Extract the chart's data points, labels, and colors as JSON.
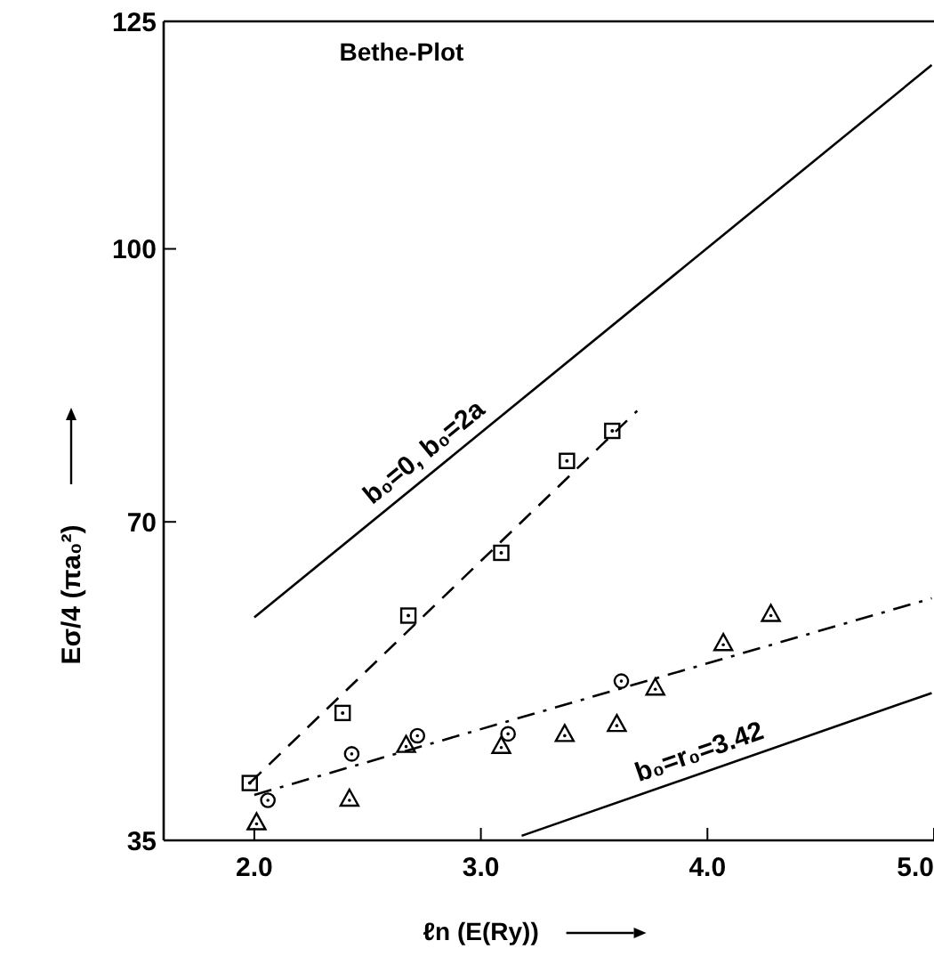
{
  "chart_data": {
    "type": "scatter",
    "title": "Bethe-Plot",
    "xlabel": "ℓn (E(Ry))",
    "ylabel": "Eσ/4  (πa₀²)",
    "xlim": [
      1.6,
      5.0
    ],
    "xticks": [
      {
        "value": 2,
        "label": "2.0"
      },
      {
        "value": 3,
        "label": "3.0"
      },
      {
        "value": 4,
        "label": "4.0"
      },
      {
        "value": 5,
        "label": "5.0"
      }
    ],
    "ylim": [
      35,
      125
    ],
    "yticks": [
      35,
      70,
      100,
      125
    ],
    "grid": false,
    "series": [
      {
        "type": "line",
        "color": "#000000",
        "marker": "none",
        "line_style": "solid",
        "x": [
          2.0,
          4.99
        ],
        "values": [
          59.5,
          120.2
        ]
      },
      {
        "type": "line",
        "color": "#000000",
        "marker": "none",
        "line_style": "dashed",
        "x": [
          1.98,
          3.69
        ],
        "values": [
          41.3,
          82.2
        ]
      },
      {
        "type": "line",
        "color": "#000000",
        "marker": "none",
        "line_style": "dashdot",
        "x": [
          2.0,
          4.99
        ],
        "values": [
          40.0,
          61.6
        ]
      },
      {
        "type": "line",
        "color": "#000000",
        "marker": "none",
        "line_style": "solid",
        "x": [
          3.18,
          4.99
        ],
        "values": [
          35.5,
          51.2
        ]
      },
      {
        "color": "#000000",
        "marker": "square",
        "x": [
          1.98,
          2.39,
          2.68,
          3.09,
          3.38,
          3.58
        ],
        "values": [
          41.3,
          49.0,
          59.7,
          66.6,
          76.7,
          80.0
        ]
      },
      {
        "color": "#000000",
        "marker": "circle",
        "x": [
          2.06,
          2.43,
          2.72,
          3.12,
          3.62
        ],
        "values": [
          39.4,
          44.5,
          46.5,
          46.7,
          52.5
        ]
      },
      {
        "color": "#000000",
        "marker": "triangle",
        "x": [
          2.01,
          2.42,
          2.67,
          3.09,
          3.37,
          3.6,
          3.77,
          4.07,
          4.28
        ],
        "values": [
          37.0,
          39.6,
          45.5,
          45.4,
          46.7,
          47.8,
          51.8,
          56.7,
          59.9
        ]
      }
    ],
    "annotations": [
      "b₀=0,  b₀=2a",
      "b₀=r₀=3.42"
    ]
  }
}
